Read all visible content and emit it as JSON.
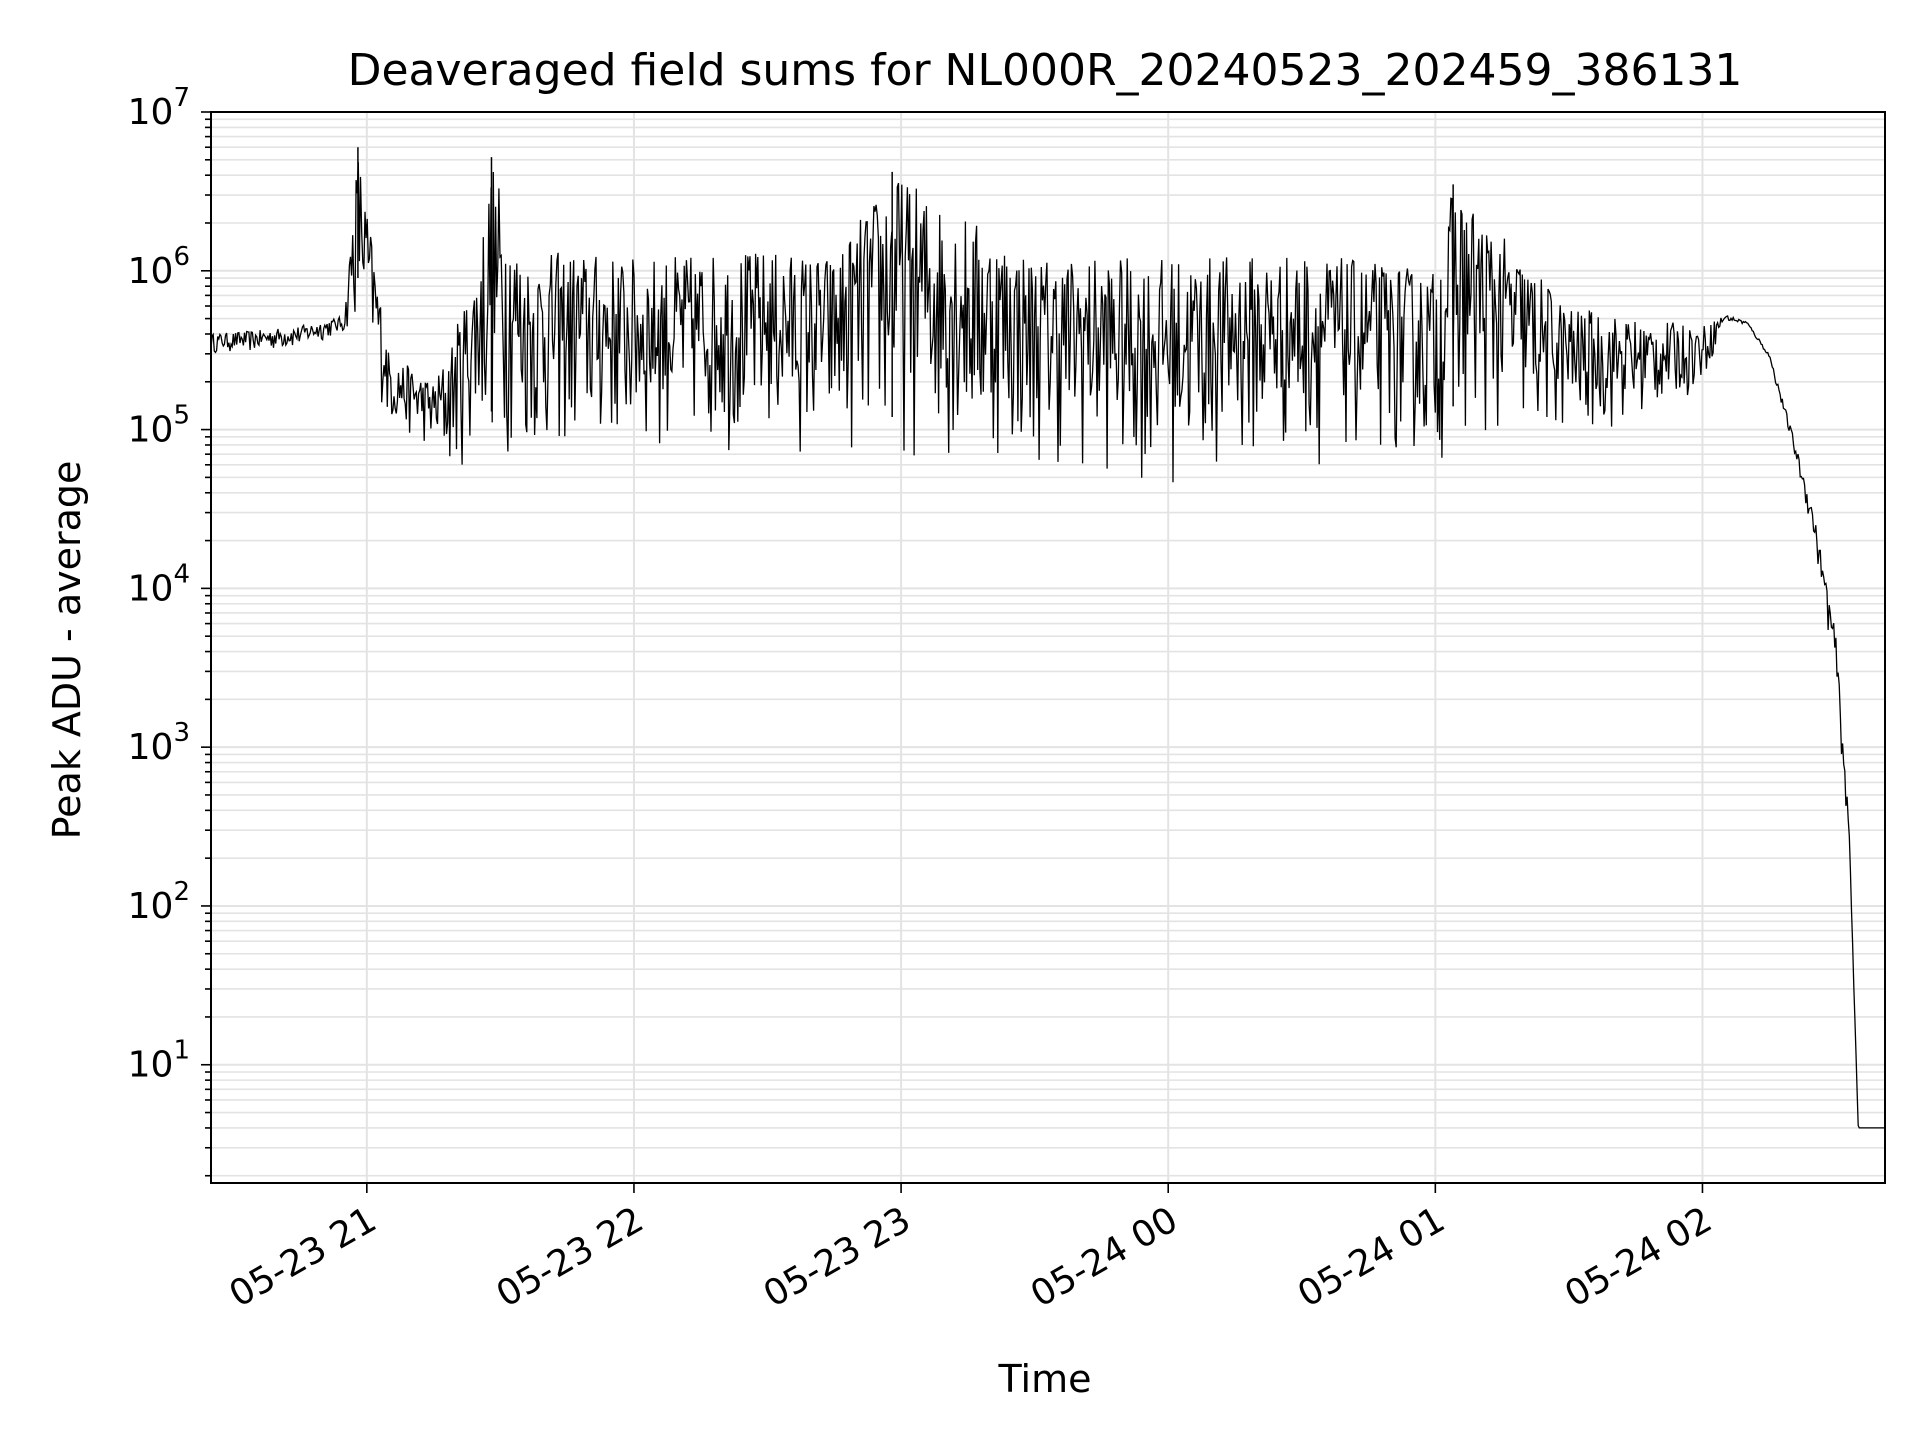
{
  "chart_data": {
    "type": "line",
    "title": "Deaveraged field sums for NL000R_20240523_202459_386131",
    "xlabel": "Time",
    "ylabel": "Peak ADU - average",
    "yscale": "log",
    "ylim": [
      1.8,
      10000000
    ],
    "xlim": [
      "2024-05-23 20:25",
      "2024-05-24 02:41"
    ],
    "grid": true,
    "line_color": "#000000",
    "x_ticks": [
      {
        "t": "2024-05-23 21:00",
        "label": "05-23 21"
      },
      {
        "t": "2024-05-23 22:00",
        "label": "05-23 22"
      },
      {
        "t": "2024-05-23 23:00",
        "label": "05-23 23"
      },
      {
        "t": "2024-05-24 00:00",
        "label": "05-24 00"
      },
      {
        "t": "2024-05-24 01:00",
        "label": "05-24 01"
      },
      {
        "t": "2024-05-24 02:00",
        "label": "05-24 02"
      }
    ],
    "y_ticks": [
      {
        "value": 10,
        "base": "10",
        "exp": "1"
      },
      {
        "value": 100,
        "base": "10",
        "exp": "2"
      },
      {
        "value": 1000,
        "base": "10",
        "exp": "3"
      },
      {
        "value": 10000,
        "base": "10",
        "exp": "4"
      },
      {
        "value": 100000,
        "base": "10",
        "exp": "5"
      },
      {
        "value": 1000000,
        "base": "10",
        "exp": "6"
      },
      {
        "value": 10000000,
        "base": "10",
        "exp": "7"
      }
    ],
    "series": [
      {
        "x": [
          "2024-05-23 20:25",
          "2024-05-23 20:35",
          "2024-05-23 20:45",
          "2024-05-23 20:55",
          "2024-05-23 20:58",
          "2024-05-23 21:05",
          "2024-05-23 21:15",
          "2024-05-23 21:18",
          "2024-05-23 21:25",
          "2024-05-23 21:28",
          "2024-05-23 21:35",
          "2024-05-23 21:45",
          "2024-05-23 22:00",
          "2024-05-23 22:30",
          "2024-05-23 22:45",
          "2024-05-23 22:58",
          "2024-05-23 23:30",
          "2024-05-23 23:57",
          "2024-05-24 00:30",
          "2024-05-24 01:00",
          "2024-05-24 01:04",
          "2024-05-24 01:30",
          "2024-05-24 01:45",
          "2024-05-24 02:00",
          "2024-05-24 02:05",
          "2024-05-24 02:10",
          "2024-05-24 02:15",
          "2024-05-24 02:20",
          "2024-05-24 02:25",
          "2024-05-24 02:30",
          "2024-05-24 02:33",
          "2024-05-24 02:35",
          "2024-05-24 02:41"
        ],
        "values_peak": [
          400000,
          420000,
          450000,
          520000,
          6000000,
          300000,
          200000,
          300000,
          1200000,
          5200000,
          1200000,
          1350000,
          1200000,
          1350000,
          1250000,
          4200000,
          1250000,
          1200000,
          1300000,
          1000000,
          3500000,
          600000,
          500000,
          450000,
          530000,
          480000,
          300000,
          100000,
          30000,
          5000,
          300,
          4,
          4
        ],
        "values_floor": [
          300000,
          300000,
          320000,
          400000,
          450000,
          100000,
          70000,
          45000,
          70000,
          65000,
          60000,
          60000,
          65000,
          70000,
          60000,
          60000,
          55000,
          40000,
          60000,
          60000,
          70000,
          80000,
          100000,
          180000,
          480000,
          450000,
          280000,
          80000,
          20000,
          2500,
          200,
          4,
          4
        ]
      }
    ]
  }
}
